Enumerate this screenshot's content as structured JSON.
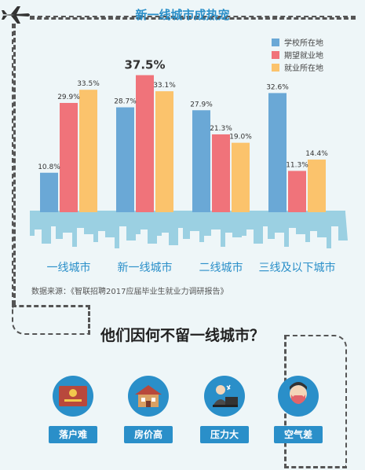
{
  "chart_data": {
    "type": "bar",
    "title": "新一线城市成热宠",
    "categories": [
      "一线城市",
      "新一线城市",
      "二线城市",
      "三线及以下城市"
    ],
    "series": [
      {
        "name": "学校所在地",
        "color": "#6aa8d6",
        "values": [
          10.8,
          28.7,
          27.9,
          32.6
        ],
        "labels": [
          "10.8%",
          "28.7%",
          "27.9%",
          "32.6%"
        ]
      },
      {
        "name": "期望就业地",
        "color": "#f0737a",
        "values": [
          29.9,
          37.5,
          21.3,
          11.3
        ],
        "labels": [
          "29.9%",
          "37.5%",
          "21.3%",
          "11.3%"
        ]
      },
      {
        "name": "就业所在地",
        "color": "#fbc36c",
        "values": [
          33.5,
          33.1,
          19.0,
          14.4
        ],
        "labels": [
          "33.5%",
          "33.1%",
          "19.0%",
          "14.4%"
        ]
      }
    ],
    "highlight_label": "37.5%",
    "ylim": [
      0,
      40
    ],
    "grid": false,
    "legend": "top-right",
    "source": "数据来源：《智联招聘2017应届毕业生就业力调研报告》"
  },
  "section_title": "他们因何不留一线城市？",
  "reasons": [
    {
      "label": "落户难",
      "icon": "document-icon"
    },
    {
      "label": "房价高",
      "icon": "house-icon"
    },
    {
      "label": "压力大",
      "icon": "stressed-worker-icon"
    },
    {
      "label": "空气差",
      "icon": "mask-icon"
    }
  ],
  "colors": {
    "accent": "#2a8fc9",
    "skyline": "#9bd0e2",
    "dashed": "#555555"
  }
}
